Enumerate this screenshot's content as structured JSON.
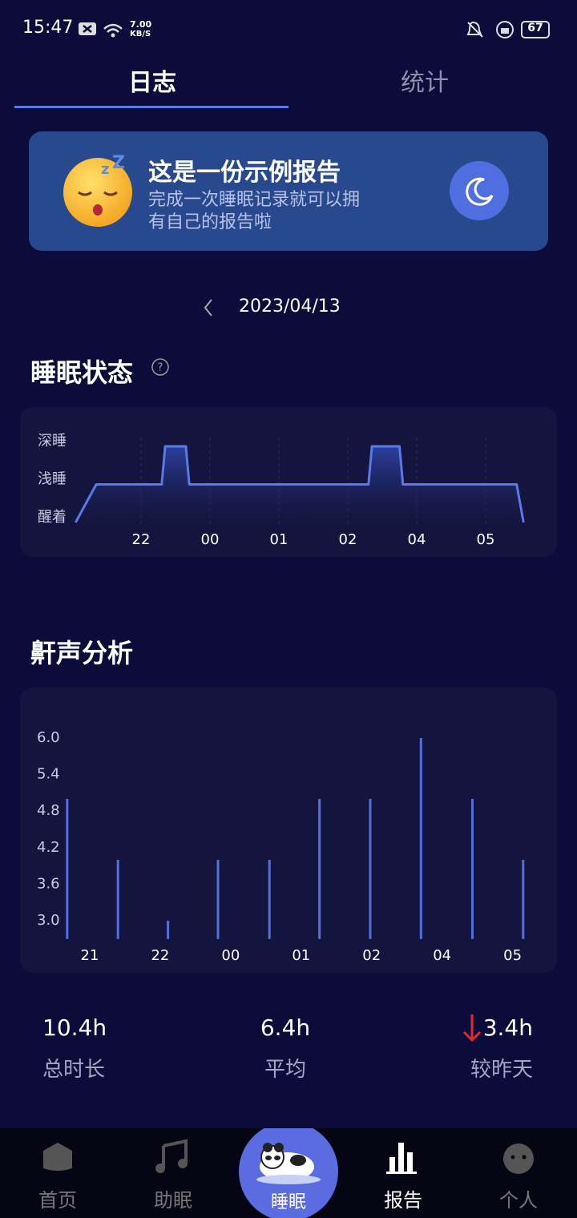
{
  "status_bar": {
    "time": "15:47",
    "net_speed": "7.00",
    "net_unit": "KB/S",
    "battery": "67"
  },
  "tabs": [
    "日志",
    "统计"
  ],
  "banner": {
    "title": "这是一份示例报告",
    "subtitle": "完成一次睡眠记录就可以拥有自己的报告啦"
  },
  "date": "2023/04/13",
  "sleep_state": {
    "title": "睡眠状态",
    "chart_data": {
      "type": "line",
      "color": "#5b79e6",
      "xlim": [
        -1,
        5.6
      ],
      "xticks": [
        {
          "value": 0,
          "label": "22"
        },
        {
          "value": 1,
          "label": "00"
        },
        {
          "value": 2,
          "label": "01"
        },
        {
          "value": 3,
          "label": "02"
        },
        {
          "value": 4,
          "label": "04"
        },
        {
          "value": 5,
          "label": "05"
        }
      ],
      "ylim": [
        0,
        2
      ],
      "yticks": [
        {
          "value": 2,
          "label": "深睡"
        },
        {
          "value": 1,
          "label": "浅睡"
        },
        {
          "value": 0,
          "label": "醒着"
        }
      ],
      "x": [
        -0.95,
        -0.65,
        0.3,
        0.35,
        0.65,
        0.7,
        3.3,
        3.35,
        3.75,
        3.8,
        5.45,
        5.55
      ],
      "values": [
        0,
        1,
        1,
        2,
        2,
        1,
        1,
        2,
        2,
        1,
        1,
        0
      ]
    }
  },
  "snore": {
    "title": "鼾声分析",
    "chart_data": {
      "type": "bar",
      "color": "#5470dc",
      "xlim": [
        -0.5,
        6.3
      ],
      "xticks": [
        {
          "value": 0,
          "label": "21"
        },
        {
          "value": 1,
          "label": "22"
        },
        {
          "value": 2,
          "label": "00"
        },
        {
          "value": 3,
          "label": "01"
        },
        {
          "value": 4,
          "label": "02"
        },
        {
          "value": 5,
          "label": "04"
        },
        {
          "value": 6,
          "label": "05"
        }
      ],
      "ylim": [
        2.7,
        6
      ],
      "yticks": [
        {
          "value": 6,
          "label": "6.0"
        },
        {
          "value": 5.4,
          "label": "5.4"
        },
        {
          "value": 4.8,
          "label": "4.8"
        },
        {
          "value": 4.2,
          "label": "4.2"
        },
        {
          "value": 3.6,
          "label": "3.6"
        },
        {
          "value": 3,
          "label": "3.0"
        }
      ],
      "x": [
        -0.32,
        0.4,
        1.11,
        1.82,
        2.55,
        3.26,
        3.98,
        4.7,
        5.43,
        6.15
      ],
      "values": [
        5,
        4,
        3,
        4,
        4,
        5,
        5,
        6,
        5,
        4
      ]
    }
  },
  "stats": [
    {
      "value": "10.4h",
      "label": "总时长"
    },
    {
      "value": "6.4h",
      "label": "平均"
    },
    {
      "value": "3.4h",
      "label": "较昨天"
    }
  ],
  "nav": [
    "首页",
    "助眠",
    "睡眠",
    "报告",
    "个人"
  ]
}
